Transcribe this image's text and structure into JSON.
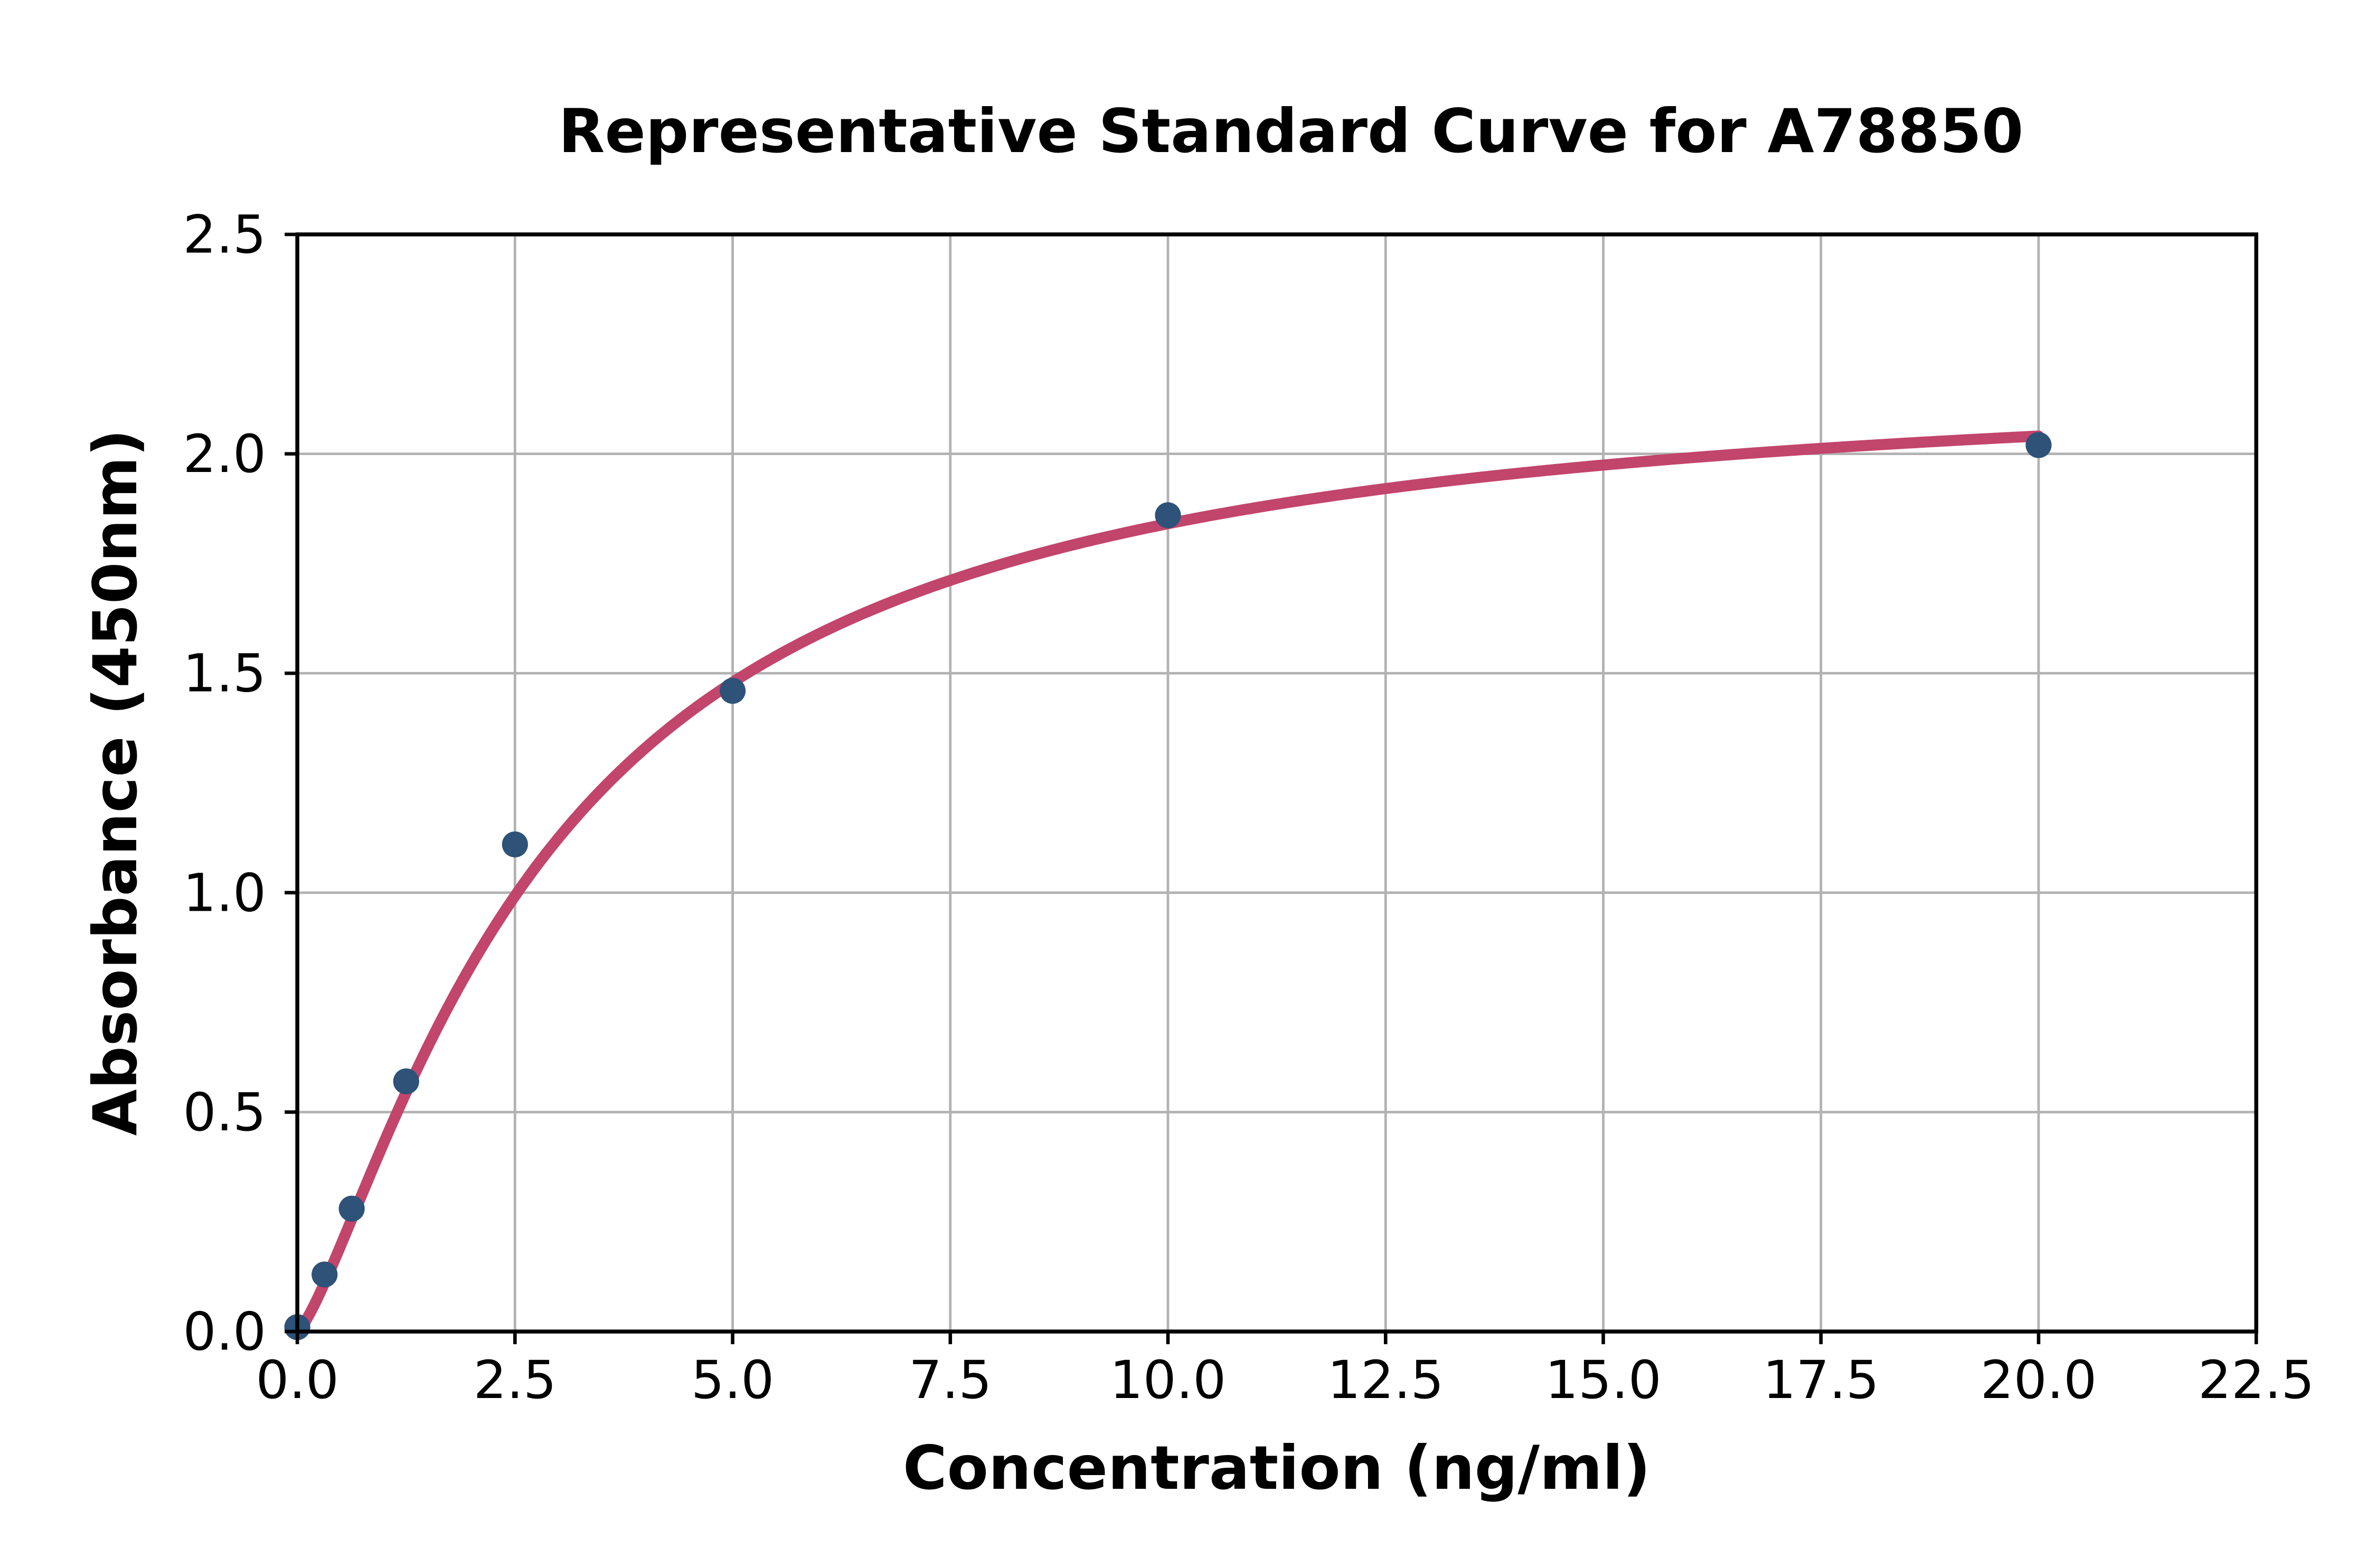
{
  "chart_data": {
    "type": "scatter",
    "title": "Representative Standard Curve for A78850",
    "xlabel": "Concentration (ng/ml)",
    "ylabel": "Absorbance (450nm)",
    "xlim": [
      0,
      22.5
    ],
    "ylim": [
      0,
      2.5
    ],
    "grid": true,
    "legend": "none",
    "x_ticks": {
      "values": [
        0,
        2.5,
        5,
        7.5,
        10,
        12.5,
        15,
        17.5,
        20,
        22.5
      ],
      "labels": [
        "0.0",
        "2.5",
        "5.0",
        "7.5",
        "10.0",
        "12.5",
        "15.0",
        "17.5",
        "20.0",
        "22.5"
      ]
    },
    "y_ticks": {
      "values": [
        0,
        0.5,
        1,
        1.5,
        2,
        2.5
      ],
      "labels": [
        "0.0",
        "0.5",
        "1.0",
        "1.5",
        "2.0",
        "2.5"
      ]
    },
    "series": [
      {
        "name": "standard-points",
        "style": "scatter",
        "points": [
          {
            "x": 0,
            "y": 0.01
          },
          {
            "x": 0.313,
            "y": 0.13
          },
          {
            "x": 0.625,
            "y": 0.28
          },
          {
            "x": 1.25,
            "y": 0.57
          },
          {
            "x": 2.5,
            "y": 1.11
          },
          {
            "x": 5,
            "y": 1.46
          },
          {
            "x": 10,
            "y": 1.86
          },
          {
            "x": 20,
            "y": 2.02
          }
        ]
      },
      {
        "name": "four-parameter-logistic-fit",
        "style": "line",
        "model": "4PL",
        "params": {
          "a": 2.2,
          "b": 1.32,
          "c": 2.9,
          "d": 0
        },
        "x_range": [
          0,
          20
        ]
      }
    ],
    "colors": {
      "marker": "#2e5278",
      "curve": "#c2456b",
      "grid": "#b2b2b2",
      "axes": "#000000",
      "text": "#000000",
      "background": "#ffffff"
    }
  }
}
